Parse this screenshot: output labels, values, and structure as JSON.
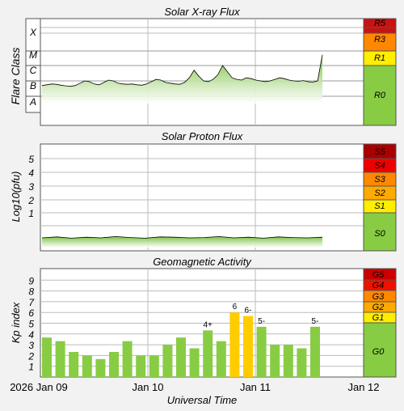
{
  "chart_data": [
    {
      "type": "area",
      "title": "Solar X-ray Flux",
      "ylabel": "Flare Class",
      "class_labels": [
        "X",
        "M",
        "C",
        "B",
        "A"
      ],
      "scale_labels": [
        "R5",
        "R3",
        "R1",
        "R0"
      ],
      "scale_colors": [
        "#cc0000",
        "#ff8800",
        "#ffee00",
        "#88cc44"
      ],
      "series": [
        {
          "values": [
            1.2,
            1.25,
            1.3,
            1.28,
            1.22,
            1.18,
            1.15,
            1.2,
            1.35,
            1.5,
            1.45,
            1.3,
            1.25,
            1.4,
            1.55,
            1.5,
            1.35,
            1.3,
            1.28,
            1.3,
            1.25,
            1.22,
            1.3,
            1.45,
            1.6,
            1.55,
            1.4,
            1.35,
            1.3,
            1.28,
            1.4,
            1.7,
            2.2,
            1.8,
            1.5,
            1.45,
            1.6,
            1.9,
            2.5,
            2.1,
            1.7,
            1.6,
            1.55,
            1.7,
            1.65,
            1.55,
            1.5,
            1.45,
            1.5,
            1.6,
            1.7,
            1.65,
            1.55,
            1.5,
            1.48,
            1.52,
            1.45,
            1.42,
            1.5,
            3.2
          ]
        }
      ],
      "x_range": [
        "Jan 09",
        "Jan 12"
      ]
    },
    {
      "type": "area",
      "title": "Solar Proton Flux",
      "ylabel": "Log10(pfu)",
      "yticks": [
        "5",
        "4",
        "3",
        "2",
        "1"
      ],
      "scale_labels": [
        "S5",
        "S4",
        "S3",
        "S2",
        "S1",
        "S0"
      ],
      "scale_colors": [
        "#aa0000",
        "#ee0000",
        "#ff8800",
        "#ffaa00",
        "#ffee00",
        "#88cc44"
      ],
      "series": [
        {
          "values": [
            -0.05,
            -0.02,
            -0.06,
            -0.03,
            -0.05,
            -0.01,
            -0.04,
            -0.06,
            -0.02,
            -0.03,
            -0.05,
            -0.04,
            -0.01,
            -0.05,
            -0.03,
            -0.06,
            -0.02,
            -0.04,
            -0.05,
            -0.03
          ]
        }
      ]
    },
    {
      "type": "bar",
      "title": "Geomagnetic Activity",
      "ylabel": "Kp index",
      "xlabel": "Universal Time",
      "yticks": [
        "9",
        "8",
        "7",
        "6",
        "5",
        "4",
        "3",
        "2",
        "1"
      ],
      "categories_start": "Jan 09",
      "x_ticks": [
        "2026 Jan 09",
        "Jan 10",
        "Jan 11",
        "Jan 12"
      ],
      "values": [
        3.67,
        3.33,
        2.33,
        2,
        1.67,
        2.33,
        3.33,
        2,
        2,
        3,
        3.67,
        2.67,
        4.33,
        3.33,
        6,
        5.67,
        4.67,
        3,
        3,
        2.67,
        4.67
      ],
      "bar_labels": [
        "",
        "",
        "",
        "",
        "",
        "",
        "",
        "",
        "",
        "",
        "",
        "",
        "4+",
        "",
        "6",
        "6-",
        "5-",
        "",
        "",
        "",
        "5-"
      ],
      "scale_labels": [
        "G5",
        "G4",
        "G3",
        "G2",
        "G1",
        "G0"
      ],
      "scale_colors": [
        "#cc0000",
        "#ee1100",
        "#ff8800",
        "#ffaa00",
        "#ffee00",
        "#88cc44"
      ],
      "ylim": [
        0,
        10
      ]
    }
  ]
}
